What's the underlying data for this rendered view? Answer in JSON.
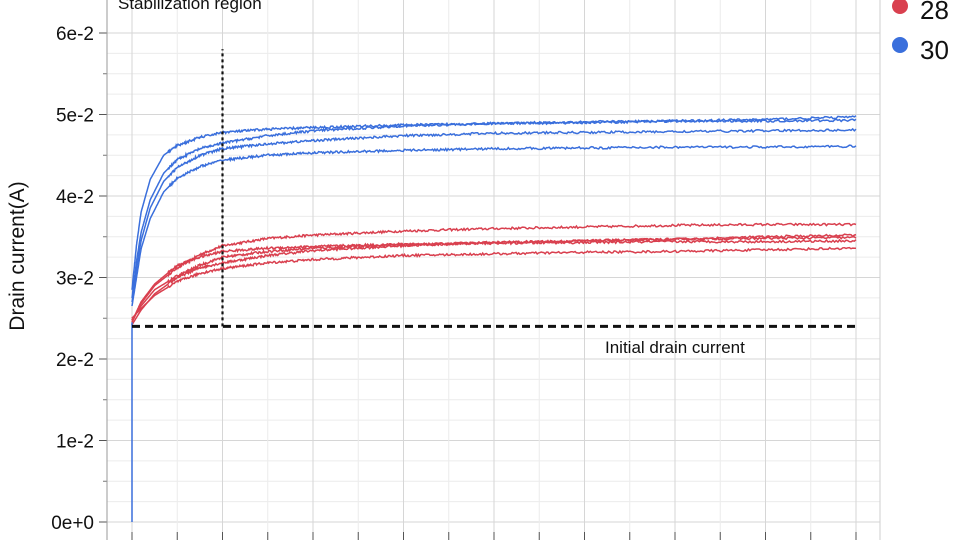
{
  "chart_data": {
    "type": "line",
    "title": "",
    "xlabel": "",
    "ylabel": "Drain current(A)",
    "ylim": [
      0,
      0.06
    ],
    "xlim": [
      0,
      800
    ],
    "yticks": [
      0,
      0.01,
      0.02,
      0.03,
      0.04,
      0.05,
      0.06
    ],
    "ytick_labels": [
      "0e+0",
      "1e-2",
      "2e-2",
      "3e-2",
      "4e-2",
      "5e-2",
      "6e-2"
    ],
    "grid": true,
    "legend": {
      "placement": "top-right",
      "entries": [
        {
          "label": "28",
          "color": "#d9404f"
        },
        {
          "label": "30",
          "color": "#3a6fdc"
        }
      ]
    },
    "annotations": [
      {
        "id": "stabilization",
        "text": "Stabilization region",
        "x": 0,
        "y": 0.0625
      },
      {
        "id": "initial",
        "text": "Initial drain current",
        "x": 520,
        "y": 0.0212
      }
    ],
    "reference_lines": {
      "vertical_x": 100,
      "vertical_y_range": [
        0.024,
        0.058
      ],
      "horizontal_y": 0.024,
      "horizontal_x_range": [
        0,
        800
      ]
    },
    "series": [
      {
        "group": "28",
        "color": "#d9404f",
        "points": [
          [
            0,
            0.0245
          ],
          [
            10,
            0.0268
          ],
          [
            25,
            0.029
          ],
          [
            50,
            0.0312
          ],
          [
            75,
            0.0328
          ],
          [
            100,
            0.0339
          ],
          [
            150,
            0.0348
          ],
          [
            200,
            0.0352
          ],
          [
            300,
            0.0357
          ],
          [
            400,
            0.036
          ],
          [
            500,
            0.0362
          ],
          [
            600,
            0.0364
          ],
          [
            700,
            0.0365
          ],
          [
            800,
            0.0365
          ]
        ]
      },
      {
        "group": "28",
        "color": "#d9404f",
        "points": [
          [
            0,
            0.0242
          ],
          [
            10,
            0.026
          ],
          [
            25,
            0.028
          ],
          [
            50,
            0.03
          ],
          [
            75,
            0.0312
          ],
          [
            100,
            0.0318
          ],
          [
            150,
            0.0327
          ],
          [
            200,
            0.0333
          ],
          [
            300,
            0.0339
          ],
          [
            400,
            0.0343
          ],
          [
            500,
            0.0345
          ],
          [
            600,
            0.0347
          ],
          [
            700,
            0.0348
          ],
          [
            800,
            0.0349
          ]
        ]
      },
      {
        "group": "28",
        "color": "#d9404f",
        "points": [
          [
            0,
            0.0248
          ],
          [
            10,
            0.0265
          ],
          [
            25,
            0.0285
          ],
          [
            50,
            0.0302
          ],
          [
            75,
            0.0315
          ],
          [
            100,
            0.0325
          ],
          [
            150,
            0.0332
          ],
          [
            200,
            0.0336
          ],
          [
            300,
            0.034
          ],
          [
            400,
            0.0343
          ],
          [
            500,
            0.0345
          ],
          [
            600,
            0.0347
          ],
          [
            700,
            0.035
          ],
          [
            800,
            0.0352
          ]
        ]
      },
      {
        "group": "28",
        "color": "#d9404f",
        "points": [
          [
            0,
            0.025
          ],
          [
            10,
            0.0262
          ],
          [
            25,
            0.0278
          ],
          [
            50,
            0.0295
          ],
          [
            75,
            0.0305
          ],
          [
            100,
            0.0311
          ],
          [
            150,
            0.0318
          ],
          [
            200,
            0.0322
          ],
          [
            300,
            0.0327
          ],
          [
            400,
            0.0329
          ],
          [
            500,
            0.0331
          ],
          [
            600,
            0.0332
          ],
          [
            700,
            0.0334
          ],
          [
            800,
            0.0336
          ]
        ]
      },
      {
        "group": "28",
        "color": "#d9404f",
        "points": [
          [
            0,
            0.0246
          ],
          [
            10,
            0.027
          ],
          [
            25,
            0.0292
          ],
          [
            50,
            0.0315
          ],
          [
            75,
            0.0325
          ],
          [
            100,
            0.0332
          ],
          [
            150,
            0.0336
          ],
          [
            200,
            0.0338
          ],
          [
            300,
            0.0341
          ],
          [
            400,
            0.0342
          ],
          [
            500,
            0.0343
          ],
          [
            600,
            0.0344
          ],
          [
            700,
            0.0344
          ],
          [
            800,
            0.0345
          ]
        ]
      },
      {
        "group": "30",
        "color": "#3a6fdc",
        "points": [
          [
            0,
            0.0285
          ],
          [
            5,
            0.034
          ],
          [
            10,
            0.038
          ],
          [
            20,
            0.042
          ],
          [
            35,
            0.045
          ],
          [
            50,
            0.0462
          ],
          [
            75,
            0.0472
          ],
          [
            100,
            0.0478
          ],
          [
            150,
            0.0482
          ],
          [
            200,
            0.0484
          ],
          [
            300,
            0.0487
          ],
          [
            400,
            0.0489
          ],
          [
            500,
            0.049
          ],
          [
            600,
            0.0492
          ],
          [
            700,
            0.0494
          ],
          [
            800,
            0.0497
          ]
        ]
      },
      {
        "group": "30",
        "color": "#3a6fdc",
        "points": [
          [
            0,
            0.0275
          ],
          [
            5,
            0.032
          ],
          [
            10,
            0.0355
          ],
          [
            20,
            0.0395
          ],
          [
            35,
            0.0428
          ],
          [
            50,
            0.0445
          ],
          [
            75,
            0.0458
          ],
          [
            100,
            0.0465
          ],
          [
            150,
            0.0474
          ],
          [
            200,
            0.048
          ],
          [
            300,
            0.0486
          ],
          [
            400,
            0.0489
          ],
          [
            500,
            0.0491
          ],
          [
            600,
            0.0492
          ],
          [
            700,
            0.0492
          ],
          [
            800,
            0.0493
          ]
        ]
      },
      {
        "group": "30",
        "color": "#3a6fdc",
        "points": [
          [
            0,
            0.027
          ],
          [
            5,
            0.031
          ],
          [
            10,
            0.0345
          ],
          [
            20,
            0.0385
          ],
          [
            35,
            0.0418
          ],
          [
            50,
            0.0435
          ],
          [
            75,
            0.045
          ],
          [
            100,
            0.0458
          ],
          [
            150,
            0.0464
          ],
          [
            200,
            0.0468
          ],
          [
            300,
            0.0474
          ],
          [
            400,
            0.0477
          ],
          [
            500,
            0.0478
          ],
          [
            600,
            0.0479
          ],
          [
            700,
            0.048
          ],
          [
            800,
            0.0481
          ]
        ]
      },
      {
        "group": "30",
        "color": "#3a6fdc",
        "points": [
          [
            0,
            0.0265
          ],
          [
            5,
            0.03
          ],
          [
            10,
            0.0335
          ],
          [
            20,
            0.0372
          ],
          [
            35,
            0.0405
          ],
          [
            50,
            0.0422
          ],
          [
            75,
            0.0436
          ],
          [
            100,
            0.0444
          ],
          [
            150,
            0.045
          ],
          [
            200,
            0.0453
          ],
          [
            300,
            0.0456
          ],
          [
            400,
            0.0458
          ],
          [
            500,
            0.0459
          ],
          [
            600,
            0.046
          ],
          [
            700,
            0.046
          ],
          [
            800,
            0.0461
          ]
        ]
      }
    ]
  }
}
